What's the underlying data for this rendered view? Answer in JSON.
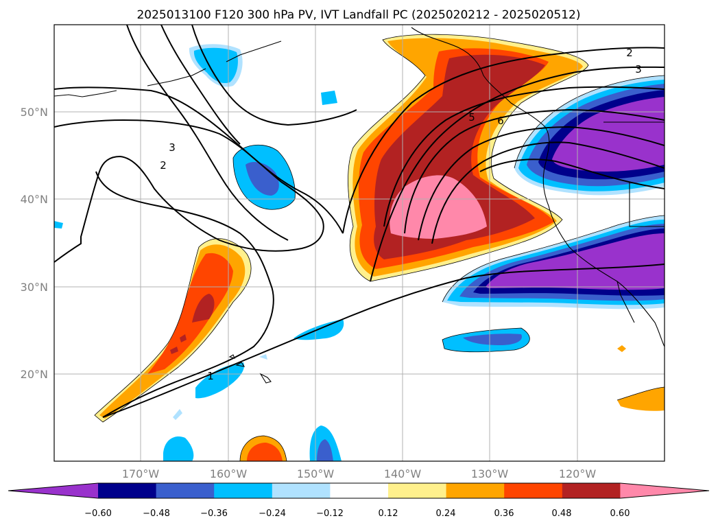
{
  "title": "2025013100 F120 300 hPa PV, IVT Landfall PC (2025020212 - 2025020512)",
  "lat_labels": [
    "50°N",
    "40°N",
    "30°N",
    "20°N"
  ],
  "lon_labels": [
    "170°W",
    "160°W",
    "150°W",
    "140°W",
    "130°W",
    "120°W"
  ],
  "colorbar": {
    "tick_labels": [
      "−0.60",
      "−0.48",
      "−0.36",
      "−0.24",
      "−0.12",
      "0.12",
      "0.24",
      "0.36",
      "0.48",
      "0.60"
    ],
    "colors": [
      "#9932cc",
      "#00008b",
      "#3a5fcd",
      "#00bfff",
      "#b0e2ff",
      "#ffffff",
      "#fff08c",
      "#ffa500",
      "#ff4500",
      "#b22222",
      "#ff88aa"
    ]
  },
  "contour_labels": [
    "1",
    "2",
    "3",
    "2",
    "3",
    "5",
    "6"
  ]
}
